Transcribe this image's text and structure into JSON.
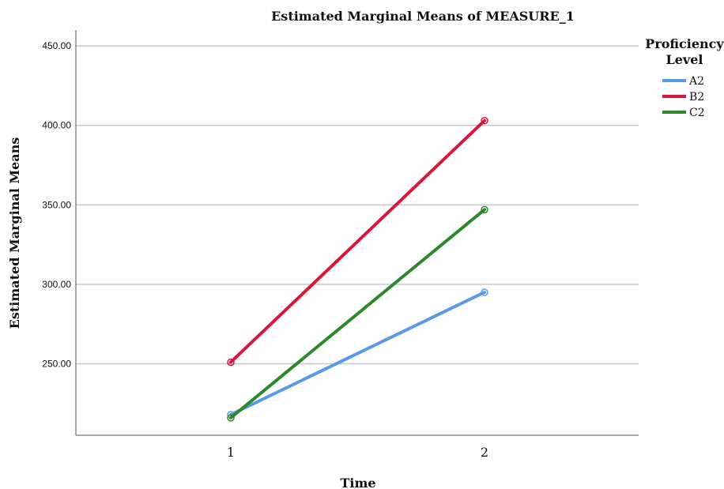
{
  "chart_data": {
    "type": "line",
    "title": "Estimated Marginal Means of MEASURE_1",
    "xlabel": "Time",
    "ylabel": "Estimated Marginal Means",
    "categories": [
      "1",
      "2"
    ],
    "yticks": [
      "250.00",
      "300.00",
      "350.00",
      "400.00",
      "450.00"
    ],
    "ylim": [
      205,
      460
    ],
    "grid": true,
    "legend_title": "Proficiency Level",
    "legend_placement": "top-right",
    "series": [
      {
        "name": "A2",
        "values": [
          218,
          295
        ],
        "color": "#5a9be8"
      },
      {
        "name": "B2",
        "values": [
          251,
          403
        ],
        "color": "#d6173e"
      },
      {
        "name": "C2",
        "values": [
          216,
          347
        ],
        "color": "#2a8a2a"
      }
    ]
  }
}
